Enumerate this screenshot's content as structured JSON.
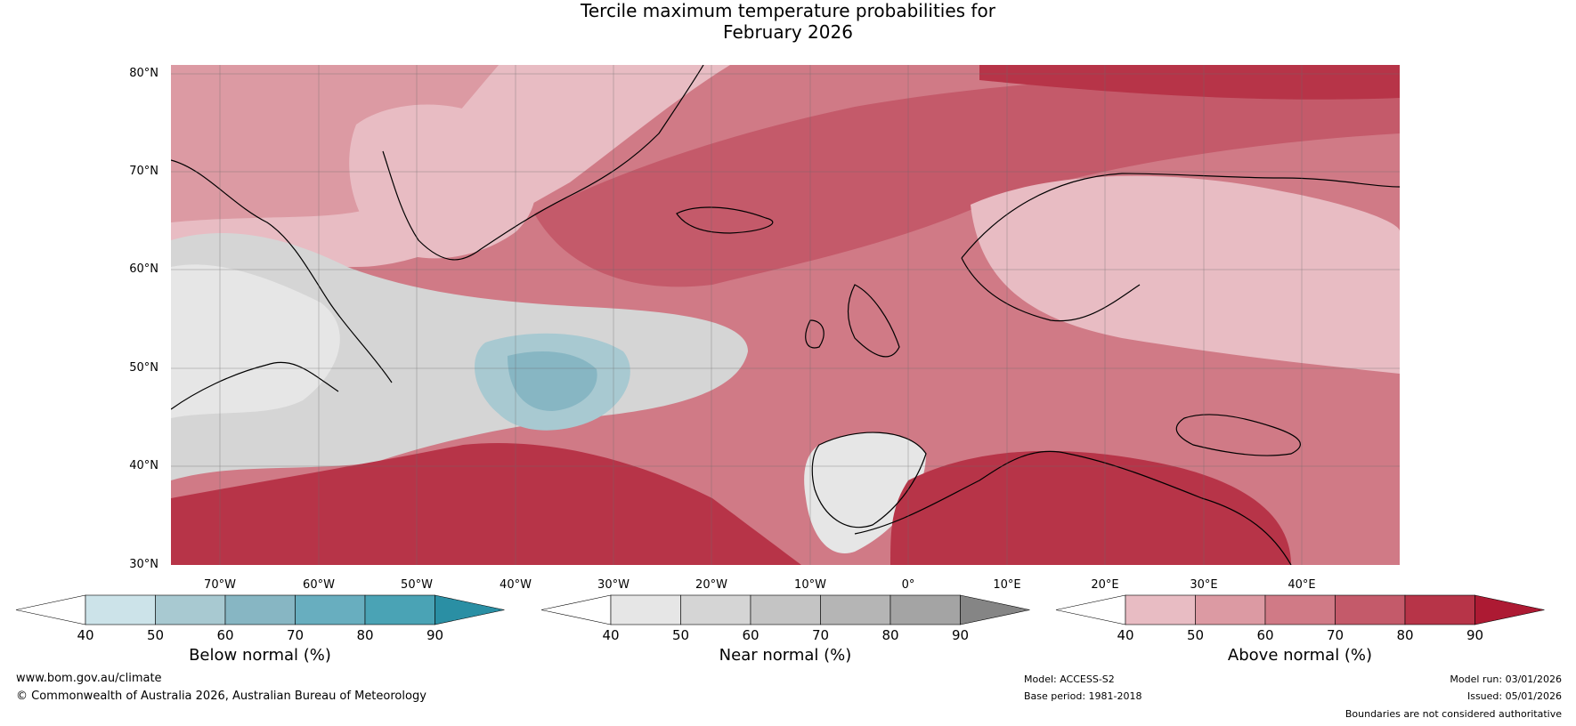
{
  "header": {
    "title_line1": "Tercile maximum temperature probabilities for",
    "title_line2": "February 2026"
  },
  "map": {
    "lat_labels": [
      "80°N",
      "70°N",
      "60°N",
      "50°N",
      "40°N",
      "30°N"
    ],
    "lon_labels": [
      "70°W",
      "60°W",
      "50°W",
      "40°W",
      "30°W",
      "20°W",
      "10°W",
      "0°",
      "10°E",
      "20°E",
      "30°E",
      "40°E"
    ]
  },
  "legends": [
    {
      "title": "Below normal (%)",
      "ticks": [
        "40",
        "50",
        "60",
        "70",
        "80",
        "90"
      ],
      "colors": [
        "#ffffff",
        "#cce3e9",
        "#a8c9d1",
        "#87b6c3",
        "#68aebf",
        "#4aa3b5",
        "#2a8fa4"
      ]
    },
    {
      "title": "Near normal (%)",
      "ticks": [
        "40",
        "50",
        "60",
        "70",
        "80",
        "90"
      ],
      "colors": [
        "#ffffff",
        "#e6e6e6",
        "#d5d5d5",
        "#c4c4c4",
        "#b5b5b5",
        "#a4a4a4",
        "#858585"
      ]
    },
    {
      "title": "Above normal (%)",
      "ticks": [
        "40",
        "50",
        "60",
        "70",
        "80",
        "90"
      ],
      "colors": [
        "#ffffff",
        "#e8bcc3",
        "#dc9aa3",
        "#d07a86",
        "#c45a6a",
        "#b73448",
        "#ad1a33"
      ]
    }
  ],
  "footer": {
    "website": "www.bom.gov.au/climate",
    "copyright": "© Commonwealth of Australia 2026, Australian Bureau of Meteorology",
    "model": "Model: ACCESS-S2",
    "base_period": "Base period: 1981-2018",
    "model_run": "Model run: 03/01/2026",
    "issued": "Issued: 05/01/2026",
    "disclaimer": "Boundaries are not considered authoritative"
  }
}
